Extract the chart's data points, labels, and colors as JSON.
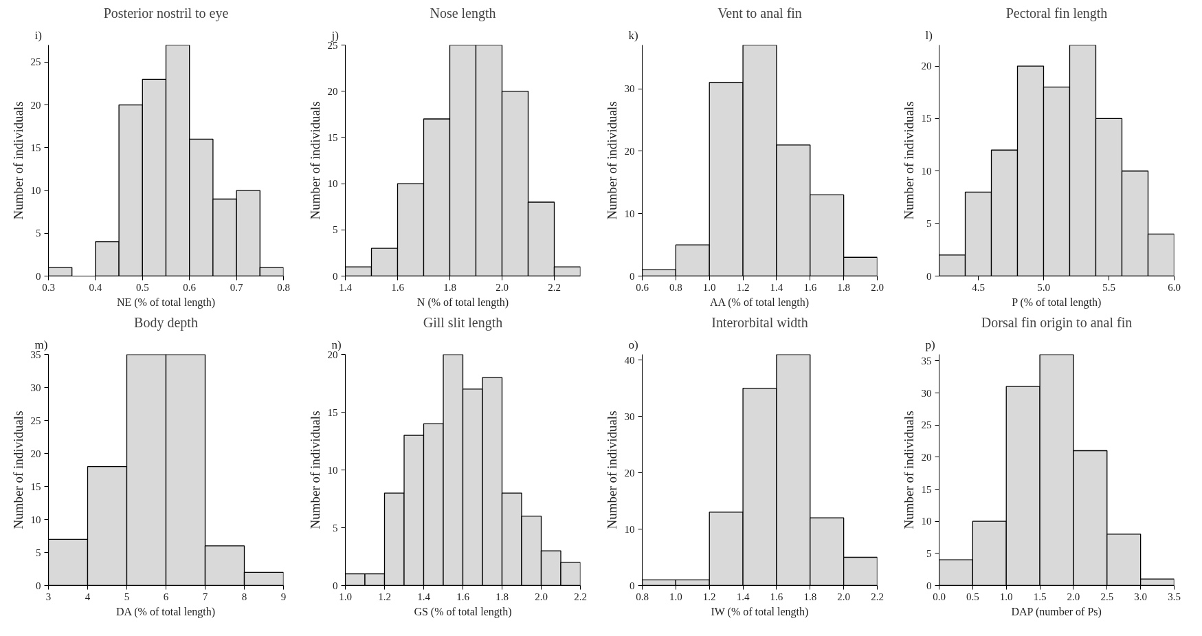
{
  "chart_data": [
    {
      "type": "histogram",
      "title": "Posterior nostril to eye",
      "annotations": [
        "i)"
      ],
      "xlabel": "NE (% of total length)",
      "ylabel": "Number of individuals",
      "bins": [
        0.3,
        0.35,
        0.4,
        0.45,
        0.5,
        0.55,
        0.6,
        0.65,
        0.7,
        0.75,
        0.8
      ],
      "values": [
        1,
        0,
        4,
        20,
        23,
        27,
        16,
        9,
        10,
        1
      ],
      "color": "#d9d9d9",
      "xlim": [
        0.3,
        0.8
      ],
      "xticks": [
        0.3,
        0.4,
        0.5,
        0.6,
        0.7,
        0.8
      ],
      "ylim": [
        0,
        27
      ],
      "yticks": [
        0,
        5,
        10,
        15,
        20,
        25
      ],
      "grid": false
    },
    {
      "type": "histogram",
      "title": "Nose length",
      "annotations": [
        "j)"
      ],
      "xlabel": "N (% of total length)",
      "ylabel": "Number of individuals",
      "bins": [
        1.4,
        1.5,
        1.6,
        1.7,
        1.8,
        1.9,
        2.0,
        2.1,
        2.2,
        2.3
      ],
      "values": [
        1,
        3,
        10,
        17,
        25,
        25,
        20,
        8,
        1
      ],
      "color": "#d9d9d9",
      "xlim": [
        1.4,
        2.3
      ],
      "xticks": [
        1.4,
        1.6,
        1.8,
        {
          "value": 2,
          "label": "2.0"
        },
        2.2
      ],
      "ylim": [
        0,
        25
      ],
      "yticks": [
        0,
        5,
        10,
        15,
        20,
        25
      ],
      "grid": false
    },
    {
      "type": "histogram",
      "title": "Vent to anal fin",
      "annotations": [
        "k)"
      ],
      "xlabel": "AA (% of total length)",
      "ylabel": "Number of individuals",
      "bins": [
        0.6,
        0.8,
        1.0,
        1.2,
        1.4,
        1.6,
        1.8,
        2.0
      ],
      "values": [
        1,
        5,
        31,
        37,
        21,
        13,
        3
      ],
      "color": "#d9d9d9",
      "xlim": [
        0.6,
        2.0
      ],
      "xticks": [
        0.6,
        0.8,
        {
          "value": 1,
          "label": "1.0"
        },
        1.2,
        1.4,
        1.6,
        1.8,
        {
          "value": 2,
          "label": "2.0"
        }
      ],
      "ylim": [
        0,
        37
      ],
      "yticks": [
        0,
        10,
        20,
        30
      ],
      "grid": false
    },
    {
      "type": "histogram",
      "title": "Pectoral fin length",
      "annotations": [
        "l)"
      ],
      "xlabel": "P (% of total length)",
      "ylabel": "Number of individuals",
      "bins": [
        4.2,
        4.4,
        4.6,
        4.8,
        5.0,
        5.2,
        5.4,
        5.6,
        5.8,
        6.0
      ],
      "values": [
        2,
        8,
        12,
        20,
        18,
        22,
        15,
        10,
        4
      ],
      "color": "#d9d9d9",
      "xlim": [
        4.2,
        6.0
      ],
      "xticks": [
        4.5,
        {
          "value": 5,
          "label": "5.0"
        },
        5.5,
        {
          "value": 6,
          "label": "6.0"
        }
      ],
      "ylim": [
        0,
        22
      ],
      "yticks": [
        0,
        5,
        10,
        15,
        20
      ],
      "grid": false
    },
    {
      "type": "histogram",
      "title": "Body depth",
      "annotations": [
        "m)"
      ],
      "xlabel": "DA (% of total length)",
      "ylabel": "Number of individuals",
      "bins": [
        3,
        4,
        5,
        6,
        7,
        8,
        9
      ],
      "values": [
        7,
        18,
        35,
        35,
        6,
        2
      ],
      "color": "#d9d9d9",
      "xlim": [
        3,
        9
      ],
      "xticks": [
        3,
        4,
        5,
        6,
        7,
        8,
        9
      ],
      "ylim": [
        0,
        35
      ],
      "yticks": [
        0,
        5,
        10,
        15,
        20,
        25,
        30,
        35
      ],
      "grid": false
    },
    {
      "type": "histogram",
      "title": "Gill slit length",
      "annotations": [
        "n)"
      ],
      "xlabel": "GS (% of total length)",
      "ylabel": "Number of individuals",
      "bins": [
        1.0,
        1.1,
        1.2,
        1.3,
        1.4,
        1.5,
        1.6,
        1.7,
        1.8,
        1.9,
        2.0,
        2.1,
        2.2
      ],
      "values": [
        1,
        1,
        8,
        13,
        14,
        20,
        17,
        18,
        8,
        6,
        3,
        2
      ],
      "color": "#d9d9d9",
      "xlim": [
        1.0,
        2.2
      ],
      "xticks": [
        {
          "value": 1,
          "label": "1.0"
        },
        1.2,
        1.4,
        1.6,
        1.8,
        {
          "value": 2,
          "label": "2.0"
        },
        2.2
      ],
      "ylim": [
        0,
        20
      ],
      "yticks": [
        0,
        5,
        10,
        15,
        20
      ],
      "grid": false
    },
    {
      "type": "histogram",
      "title": "Interorbital width",
      "annotations": [
        "o)"
      ],
      "xlabel": "IW (% of total length)",
      "ylabel": "Number of individuals",
      "bins": [
        0.8,
        1.0,
        1.2,
        1.4,
        1.6,
        1.8,
        2.0,
        2.2
      ],
      "values": [
        1,
        1,
        13,
        35,
        41,
        12,
        5
      ],
      "color": "#d9d9d9",
      "xlim": [
        0.8,
        2.2
      ],
      "xticks": [
        0.8,
        {
          "value": 1,
          "label": "1.0"
        },
        1.2,
        1.4,
        1.6,
        1.8,
        {
          "value": 2,
          "label": "2.0"
        },
        2.2
      ],
      "ylim": [
        0,
        41
      ],
      "yticks": [
        0,
        10,
        20,
        30,
        40
      ],
      "grid": false
    },
    {
      "type": "histogram",
      "title": "Dorsal fin origin to anal fin",
      "annotations": [
        "p)"
      ],
      "xlabel": "DAP (number of Ps)",
      "ylabel": "Number of individuals",
      "bins": [
        0.0,
        0.5,
        1.0,
        1.5,
        2.0,
        2.5,
        3.0,
        3.5
      ],
      "values": [
        4,
        10,
        31,
        36,
        21,
        8,
        1
      ],
      "color": "#d9d9d9",
      "xlim": [
        0.0,
        3.5
      ],
      "xticks": [
        {
          "value": 0,
          "label": "0.0"
        },
        0.5,
        {
          "value": 1,
          "label": "1.0"
        },
        1.5,
        {
          "value": 2,
          "label": "2.0"
        },
        2.5,
        {
          "value": 3,
          "label": "3.0"
        },
        3.5
      ],
      "ylim": [
        0,
        36
      ],
      "yticks": [
        0,
        5,
        10,
        15,
        20,
        25,
        30,
        35
      ],
      "grid": false
    }
  ]
}
